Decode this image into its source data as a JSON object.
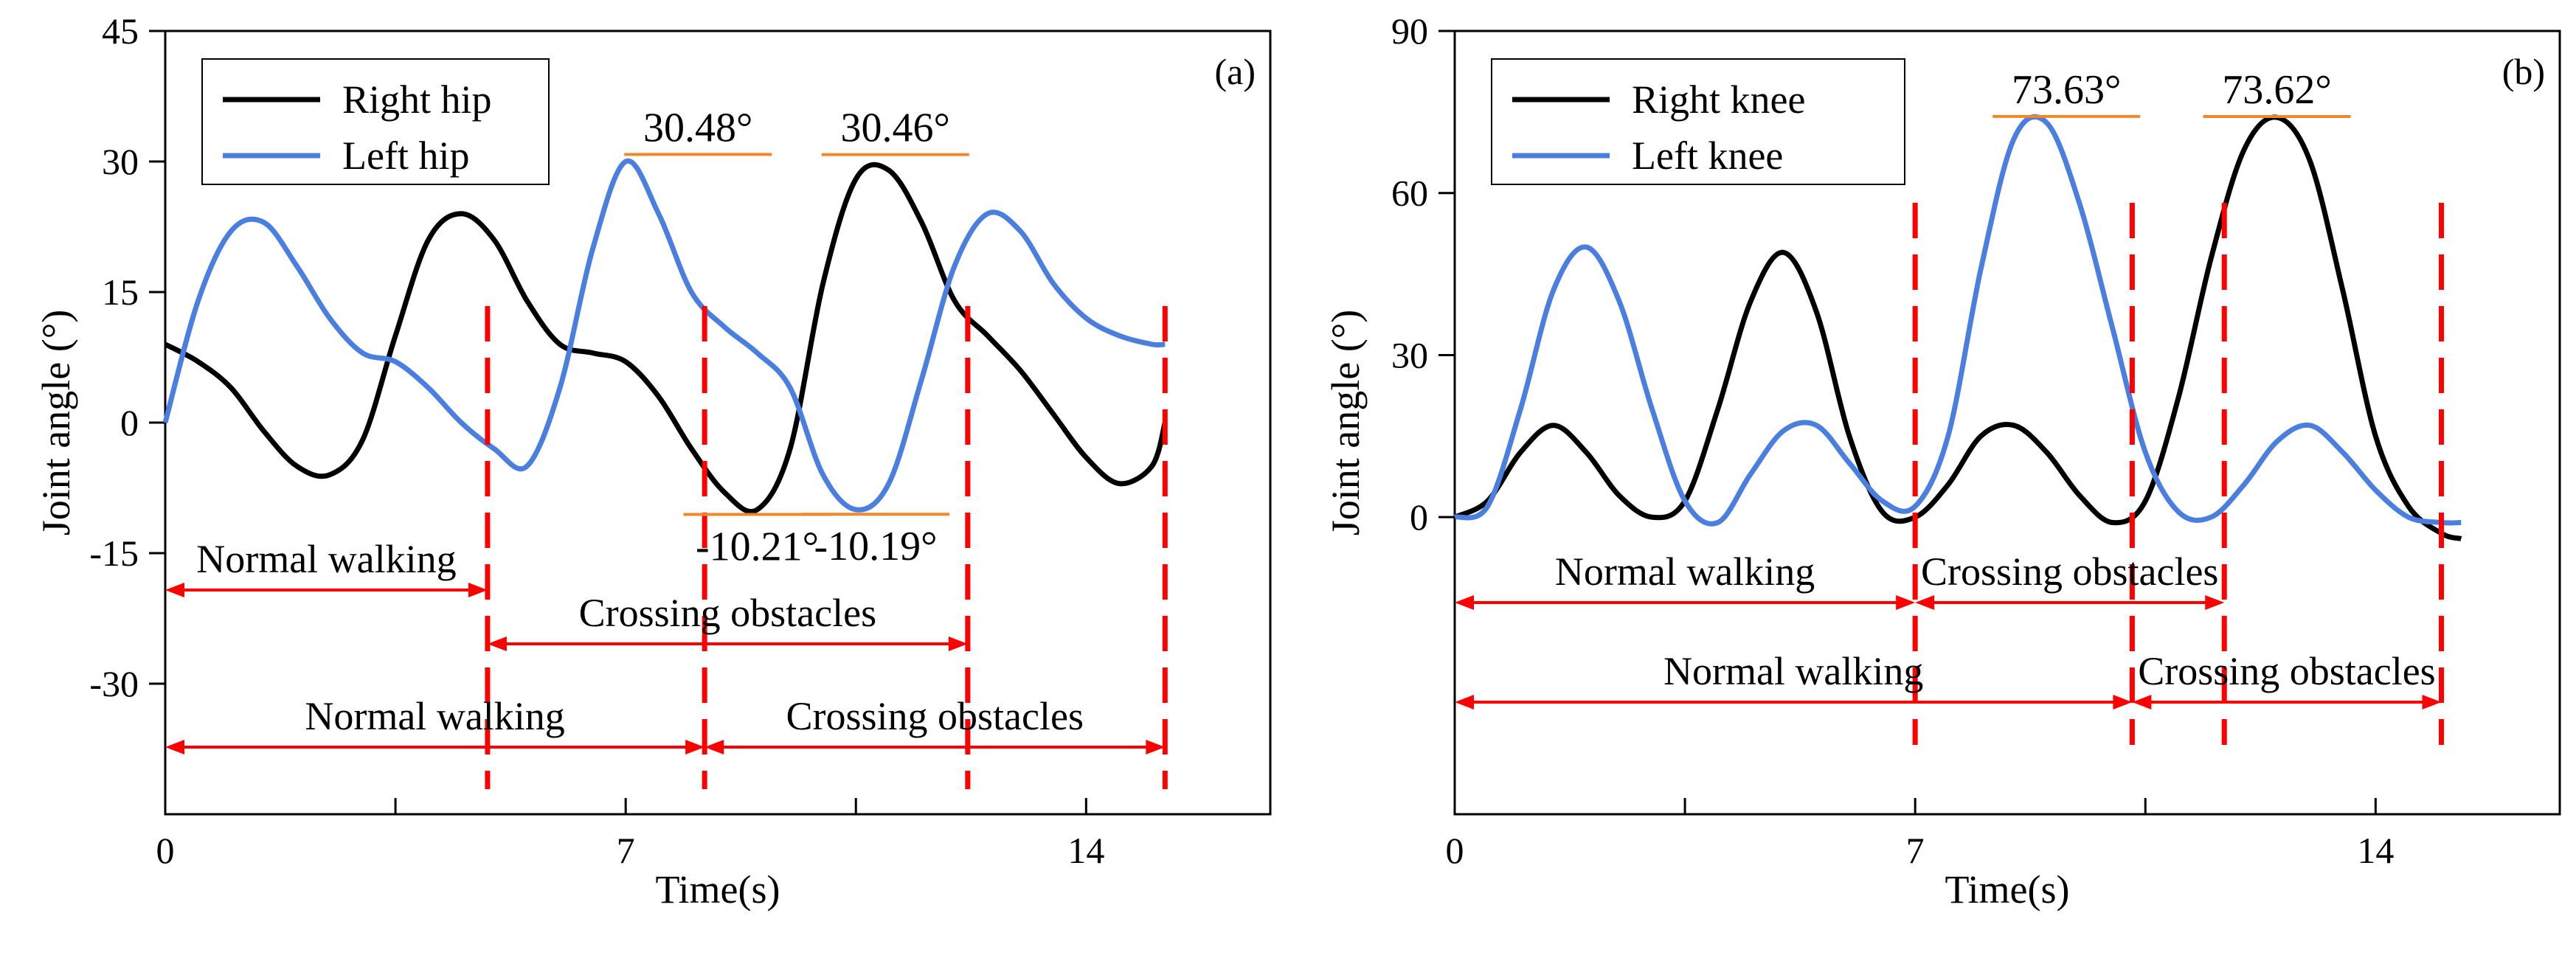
{
  "chart_data": [
    {
      "type": "line",
      "panel_label": "(a)",
      "xlabel": "Time(s)",
      "ylabel": "Joint angle (°)",
      "xlim": [
        0,
        16.8
      ],
      "ylim": [
        -45,
        45
      ],
      "xticks": [
        0,
        7,
        14
      ],
      "xticks_minor": [
        3.5,
        10.5
      ],
      "yticks": [
        -30,
        -15,
        0,
        15,
        30,
        45
      ],
      "legend_position": "top-left",
      "series": [
        {
          "name": "Right hip",
          "color": "#000000",
          "x": [
            0,
            0.5,
            1.0,
            1.5,
            2.0,
            2.5,
            3.0,
            3.5,
            4.0,
            4.5,
            5.0,
            5.5,
            6.0,
            6.5,
            7.0,
            7.5,
            8.0,
            8.5,
            9.0,
            9.5,
            10.0,
            10.5,
            11.0,
            11.5,
            12.0,
            12.5,
            13.0,
            13.5,
            14.0,
            14.5,
            15.0,
            15.2
          ],
          "y": [
            9,
            7,
            4,
            -1,
            -5,
            -6,
            -2,
            10,
            21,
            24,
            21,
            14,
            9,
            8,
            7,
            3,
            -3,
            -8,
            -10,
            -3,
            16,
            28,
            29,
            23,
            14,
            10,
            6,
            1,
            -4,
            -7,
            -5,
            0
          ]
        },
        {
          "name": "Left hip",
          "color": "#4a7fe0",
          "x": [
            0,
            0.5,
            1.0,
            1.5,
            2.0,
            2.5,
            3.0,
            3.5,
            4.0,
            4.5,
            5.0,
            5.5,
            6.0,
            6.5,
            7.0,
            7.5,
            8.0,
            8.5,
            9.0,
            9.5,
            10.0,
            10.5,
            11.0,
            11.5,
            12.0,
            12.5,
            13.0,
            13.5,
            14.0,
            14.5,
            15.0,
            15.2
          ],
          "y": [
            0,
            14,
            22,
            23,
            18,
            12,
            8,
            7,
            4,
            0,
            -3,
            -5,
            4,
            20,
            30,
            24,
            15,
            11,
            8,
            4,
            -6,
            -10,
            -7,
            5,
            18,
            24,
            22,
            16,
            12,
            10,
            9,
            9
          ]
        }
      ],
      "annotations": [
        {
          "text": "30.48°",
          "x": 8.1,
          "y": 30.48
        },
        {
          "text": "30.46°",
          "x": 11.1,
          "y": 30.46
        },
        {
          "text": "-10.21°",
          "x": 9.0,
          "y": -10.21
        },
        {
          "text": "-10.19°",
          "x": 10.8,
          "y": -10.19
        }
      ],
      "phase_boundaries": [
        4.9,
        8.2,
        12.2,
        15.2
      ],
      "segments": [
        {
          "label": "Normal walking",
          "x_start": 0,
          "x_end": 4.9,
          "row": 1
        },
        {
          "label": "Crossing obstacles",
          "x_start": 4.9,
          "x_end": 12.2,
          "row": 2
        },
        {
          "label": "Normal walking",
          "x_start": 0,
          "x_end": 8.2,
          "row": 3
        },
        {
          "label": "Crossing obstacles",
          "x_start": 8.2,
          "x_end": 15.2,
          "row": 3
        }
      ]
    },
    {
      "type": "line",
      "panel_label": "(b)",
      "xlabel": "Time(s)",
      "ylabel": "Joint angle (°)",
      "xlim": [
        0,
        16.8
      ],
      "ylim": [
        -55,
        90
      ],
      "xticks": [
        0,
        7,
        14
      ],
      "xticks_minor": [
        3.5,
        10.5
      ],
      "yticks": [
        0,
        30,
        60,
        90
      ],
      "legend_position": "top-left",
      "series": [
        {
          "name": "Right knee",
          "color": "#000000",
          "x": [
            0,
            0.5,
            1.0,
            1.5,
            2.0,
            2.5,
            3.0,
            3.5,
            4.0,
            4.5,
            5.0,
            5.5,
            6.0,
            6.5,
            7.0,
            7.5,
            8.0,
            8.5,
            9.0,
            9.5,
            10.0,
            10.5,
            11.0,
            11.5,
            12.0,
            12.5,
            13.0,
            13.5,
            14.0,
            14.5,
            15.0,
            15.3
          ],
          "y": [
            0,
            3,
            12,
            17,
            12,
            4,
            0,
            3,
            20,
            40,
            49,
            38,
            15,
            1,
            0,
            6,
            15,
            17,
            12,
            4,
            -1,
            3,
            22,
            48,
            68,
            74,
            66,
            42,
            15,
            2,
            -3,
            -4
          ]
        },
        {
          "name": "Left knee",
          "color": "#4a7fe0",
          "x": [
            0,
            0.5,
            1.0,
            1.5,
            2.0,
            2.5,
            3.0,
            3.5,
            4.0,
            4.5,
            5.0,
            5.5,
            6.0,
            6.5,
            7.0,
            7.5,
            8.0,
            8.5,
            9.0,
            9.5,
            10.0,
            10.5,
            11.0,
            11.5,
            12.0,
            12.5,
            13.0,
            13.5,
            14.0,
            14.5,
            15.0,
            15.3
          ],
          "y": [
            0,
            2,
            20,
            42,
            50,
            40,
            20,
            3,
            -1,
            8,
            16,
            17,
            10,
            3,
            2,
            15,
            46,
            70,
            73,
            58,
            35,
            12,
            1,
            0,
            6,
            14,
            17,
            12,
            5,
            0,
            -1,
            -1
          ]
        }
      ],
      "annotations": [
        {
          "text": "73.63°",
          "x": 9.3,
          "y": 73.63
        },
        {
          "text": "73.62°",
          "x": 12.5,
          "y": 73.62
        }
      ],
      "phase_boundaries": [
        7.0,
        10.3,
        11.7,
        15.0
      ],
      "segments": [
        {
          "label": "Normal walking",
          "x_start": 0,
          "x_end": 7.0,
          "row": 1
        },
        {
          "label": "Crossing obstacles",
          "x_start": 7.0,
          "x_end": 11.7,
          "row": 1
        },
        {
          "label": "Normal walking",
          "x_start": 0,
          "x_end": 10.3,
          "row": 2
        },
        {
          "label": "Crossing obstacles",
          "x_start": 10.3,
          "x_end": 15.0,
          "row": 2
        }
      ]
    }
  ]
}
